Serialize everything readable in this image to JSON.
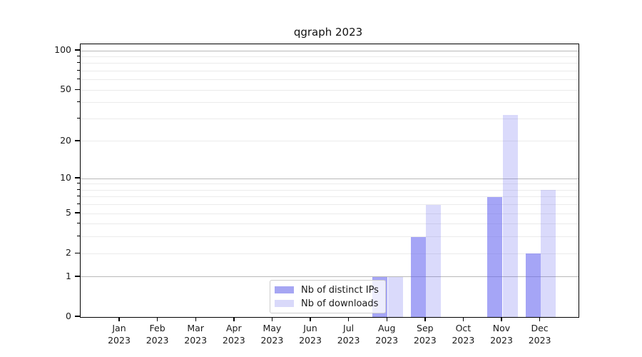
{
  "chart_data": {
    "type": "bar",
    "title": "qgraph 2023",
    "categories": [
      "Jan",
      "Feb",
      "Mar",
      "Apr",
      "May",
      "Jun",
      "Jul",
      "Aug",
      "Sep",
      "Oct",
      "Nov",
      "Dec"
    ],
    "category_year": "2023",
    "series": [
      {
        "name": "Nb of distinct IPs",
        "color": "rgba(100,100,240,0.58)",
        "swatch_color": "#a6a6f3",
        "values": [
          0,
          0,
          0,
          0,
          0,
          0,
          0,
          1,
          3,
          0,
          7,
          2
        ]
      },
      {
        "name": "Nb of downloads",
        "color": "rgba(100,100,240,0.24)",
        "swatch_color": "#d9d9fa",
        "values": [
          0,
          0,
          0,
          0,
          0,
          0,
          0,
          1,
          6,
          0,
          32,
          8
        ]
      }
    ],
    "y_axis": {
      "scale": "log10(value+1)",
      "tick_labels": [
        "0",
        "1",
        "2",
        "5",
        "10",
        "20",
        "50",
        "100"
      ],
      "tick_values": [
        0,
        1,
        2,
        5,
        10,
        20,
        50,
        100
      ],
      "major_gridlines": [
        1,
        10,
        100
      ],
      "minor_gridlines": [
        2,
        3,
        4,
        5,
        6,
        7,
        8,
        9,
        20,
        30,
        40,
        50,
        60,
        70,
        80,
        90
      ],
      "range": [
        0,
        112
      ]
    },
    "legend_position": "lower center",
    "grid": {
      "major_color": "#b9b9b9",
      "minor_color": "#ebebeb"
    }
  }
}
